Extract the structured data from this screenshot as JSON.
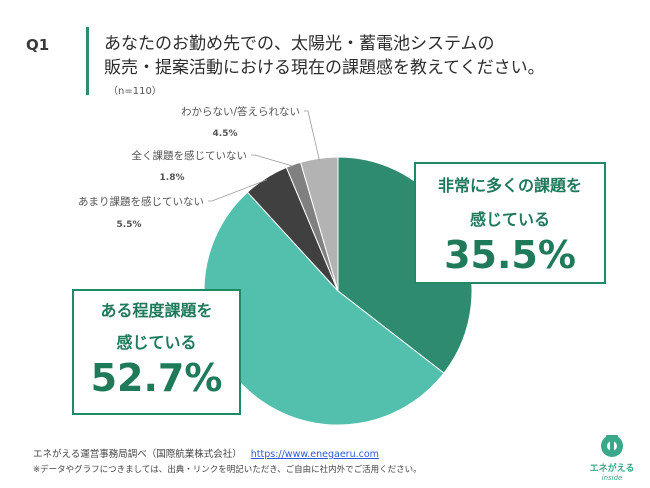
{
  "header": {
    "q_label": "Q1",
    "title_line1": "あなたのお勤め先での、太陽光・蓄電池システムの",
    "title_line2": "販売・提案活動における現在の課題感を教えてください。",
    "n": "（n=110）"
  },
  "chart_data": {
    "type": "pie",
    "start_angle_deg": 0,
    "direction": "clockwise",
    "slices": [
      {
        "label": "非常に多くの課題を感じている",
        "value": 35.5,
        "display": "35.5%",
        "color": "#2e8b70"
      },
      {
        "label": "ある程度課題を感じている",
        "value": 52.7,
        "display": "52.7%",
        "color": "#52c0ad"
      },
      {
        "label": "あまり課題を感じていない",
        "value": 5.5,
        "display": "5.5%",
        "color": "#404040"
      },
      {
        "label": "全く課題を感じていない",
        "value": 1.8,
        "display": "1.8%",
        "color": "#808080"
      },
      {
        "label": "わからない/答えられない",
        "value": 4.5,
        "display": "4.5%",
        "color": "#b3b3b3"
      }
    ]
  },
  "callouts": {
    "big1_line1": "非常に多くの課題を",
    "big1_line2": "感じている",
    "big1_pct": "35.5%",
    "big2_line1": "ある程度課題を",
    "big2_line2": "感じている",
    "big2_pct": "52.7%"
  },
  "footer": {
    "source": "エネがえる運営事務局調べ（国際航業株式会社）",
    "url": "https://www.enegaeru.com",
    "note": "※データやグラフにつきましては、出典・リンクを明記いただき、ご自由に社内外でご活用ください。"
  },
  "logo": {
    "name": "エネがえる",
    "sub": "inside"
  }
}
